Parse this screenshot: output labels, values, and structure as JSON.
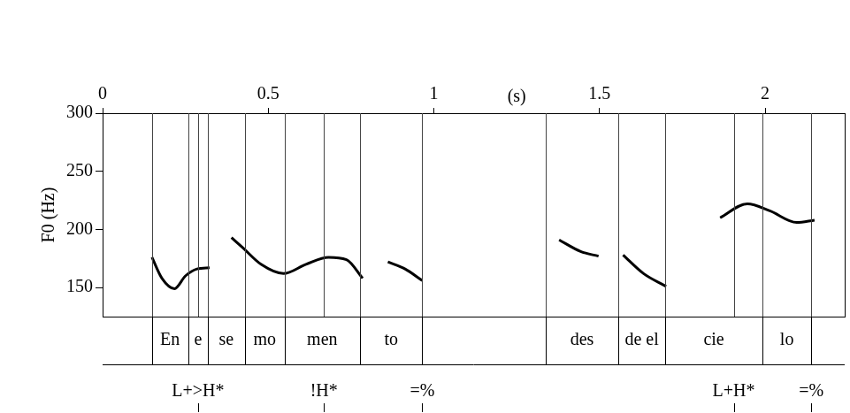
{
  "chart_data": {
    "type": "line",
    "y_label": "F0 (Hz)",
    "x_label": "(s)",
    "xlim": [
      0,
      2.24
    ],
    "xticks": [
      0,
      0.5,
      1,
      1.5,
      2
    ],
    "ylim": [
      125,
      300
    ],
    "yticks": [
      150,
      200,
      250,
      300
    ],
    "grid": false,
    "color": "#000000",
    "x": [
      0.149,
      0.179,
      0.217,
      0.25,
      0.285,
      0.323,
      0.35,
      0.389,
      0.424,
      0.478,
      0.546,
      0.614,
      0.682,
      0.736,
      0.785,
      0.82,
      0.861,
      0.913,
      0.965,
      1.2,
      1.378,
      1.443,
      1.497,
      1.53,
      1.571,
      1.633,
      1.701,
      1.78,
      1.864,
      1.946,
      2.014,
      2.095,
      2.149
    ],
    "values": [
      176,
      158,
      149,
      160,
      166,
      167,
      null,
      193,
      184,
      170,
      162,
      170,
      176,
      174,
      158,
      null,
      172,
      166,
      156,
      null,
      191,
      181,
      177,
      null,
      178,
      162,
      151,
      null,
      210,
      222,
      216,
      206,
      208
    ],
    "intervals": [
      {
        "start": 0.149,
        "end": 0.258,
        "label": "En"
      },
      {
        "start": 0.258,
        "end": 0.318,
        "label": "e"
      },
      {
        "start": 0.318,
        "end": 0.429,
        "label": "se"
      },
      {
        "start": 0.429,
        "end": 0.549,
        "label": "mo"
      },
      {
        "start": 0.549,
        "end": 0.777,
        "label": "men"
      },
      {
        "start": 0.777,
        "end": 0.965,
        "label": "to"
      },
      {
        "start": 1.337,
        "end": 1.557,
        "label": "des"
      },
      {
        "start": 1.557,
        "end": 1.698,
        "label": "de el"
      },
      {
        "start": 1.698,
        "end": 1.992,
        "label": "cie"
      },
      {
        "start": 1.992,
        "end": 2.139,
        "label": "lo"
      }
    ],
    "tones": [
      {
        "time": 0.288,
        "label": "L+>H*"
      },
      {
        "time": 0.668,
        "label": "!H*"
      },
      {
        "time": 0.965,
        "label": "=%"
      },
      {
        "time": 1.905,
        "label": "L+H*"
      },
      {
        "time": 2.139,
        "label": "=%"
      }
    ]
  }
}
